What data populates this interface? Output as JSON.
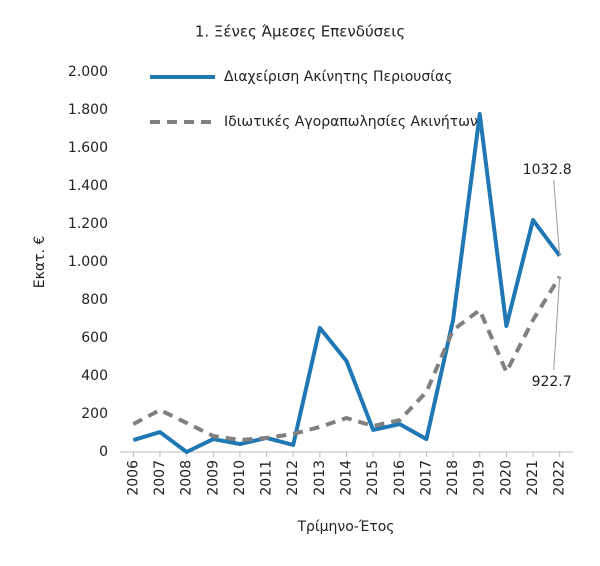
{
  "chart_data": {
    "type": "line",
    "title": "1. Ξένες Άμεσες Επενδύσεις",
    "ylabel": "Εκατ. €",
    "xlabel": "Τρίμηνο-Έτος",
    "categories": [
      "2006",
      "2007",
      "2008",
      "2009",
      "2010",
      "2011",
      "2012",
      "2013",
      "2014",
      "2015",
      "2016",
      "2017",
      "2018",
      "2019",
      "2020",
      "2021",
      "2022"
    ],
    "series": [
      {
        "name": "Διαχείριση Ακίνητης Περιουσίας",
        "color": "#1f77b4",
        "dash": false,
        "values": [
          63,
          105,
          0,
          68,
          42,
          74,
          37,
          653,
          479,
          116,
          147,
          68,
          695,
          1779,
          663,
          1221,
          1032.8
        ]
      },
      {
        "name": "Ιδιωτικές Αγοραπωλησίες Ακινήτων",
        "color": "#808080",
        "dash": true,
        "values": [
          147,
          221,
          153,
          84,
          63,
          74,
          95,
          132,
          179,
          137,
          168,
          316,
          642,
          747,
          421,
          695,
          922.7
        ]
      }
    ],
    "ylim": [
      0,
      2000
    ],
    "yticks": [
      0,
      200,
      400,
      600,
      800,
      {
        "value": 1000,
        "label": "1.000"
      },
      {
        "value": 1200,
        "label": "1.200"
      },
      {
        "value": 1400,
        "label": "1.400"
      },
      {
        "value": 1600,
        "label": "1.600"
      },
      {
        "value": 1800,
        "label": "1.800"
      },
      {
        "value": 2000,
        "label": "2.000"
      }
    ],
    "grid": false
  }
}
